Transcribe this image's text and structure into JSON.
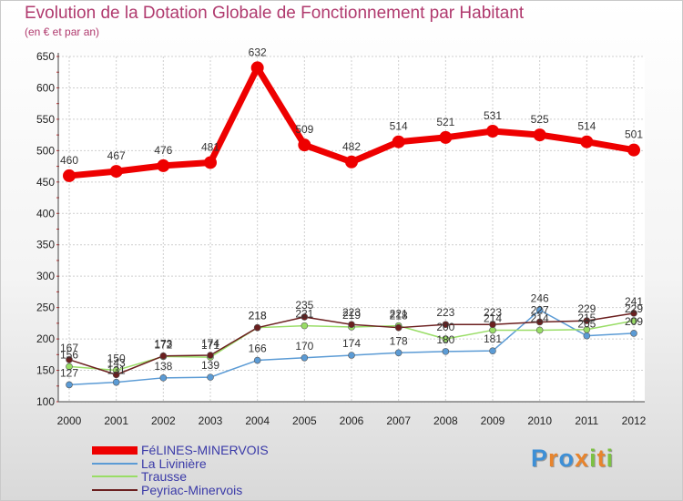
{
  "title": "Evolution de la Dotation Globale de Fonctionnement par Habitant",
  "subtitle": "(en € et par an)",
  "chart_data": {
    "type": "line",
    "title": "Evolution de la Dotation Globale de Fonctionnement par Habitant",
    "subtitle": "(en € et par an)",
    "xlabel": "",
    "ylabel": "",
    "x": [
      2000,
      2001,
      2002,
      2003,
      2004,
      2005,
      2006,
      2007,
      2008,
      2009,
      2010,
      2011,
      2012
    ],
    "ylim": [
      100,
      650
    ],
    "yticks": [
      100,
      150,
      200,
      250,
      300,
      350,
      400,
      450,
      500,
      550,
      600,
      650
    ],
    "grid": true,
    "legend_position": "bottom-left",
    "series": [
      {
        "name": "FéLINES-MINERVOIS",
        "color": "#ee0000",
        "values": [
          460,
          467,
          476,
          481,
          632,
          509,
          482,
          514,
          521,
          531,
          525,
          514,
          501
        ]
      },
      {
        "name": "La Livinière",
        "color": "#5b9bd5",
        "values": [
          127,
          131,
          138,
          139,
          166,
          170,
          174,
          178,
          180,
          181,
          246,
          205,
          209
        ]
      },
      {
        "name": "Trausse",
        "color": "#99dd66",
        "values": [
          156,
          150,
          172,
          171,
          218,
          221,
          219,
          221,
          200,
          214,
          214,
          215,
          229
        ]
      },
      {
        "name": "Peyriac-Minervois",
        "color": "#6b1f1f",
        "values": [
          167,
          143,
          173,
          174,
          218,
          235,
          223,
          218,
          223,
          223,
          227,
          229,
          241
        ]
      }
    ]
  },
  "logo": {
    "letters": [
      "P",
      "r",
      "o",
      "x",
      "i",
      "t",
      "i"
    ],
    "colors": [
      "#3d8fd6",
      "#e8842c",
      "#3d8fd6",
      "#e8842c",
      "#7cc142",
      "#e8842c",
      "#7cc142"
    ]
  }
}
